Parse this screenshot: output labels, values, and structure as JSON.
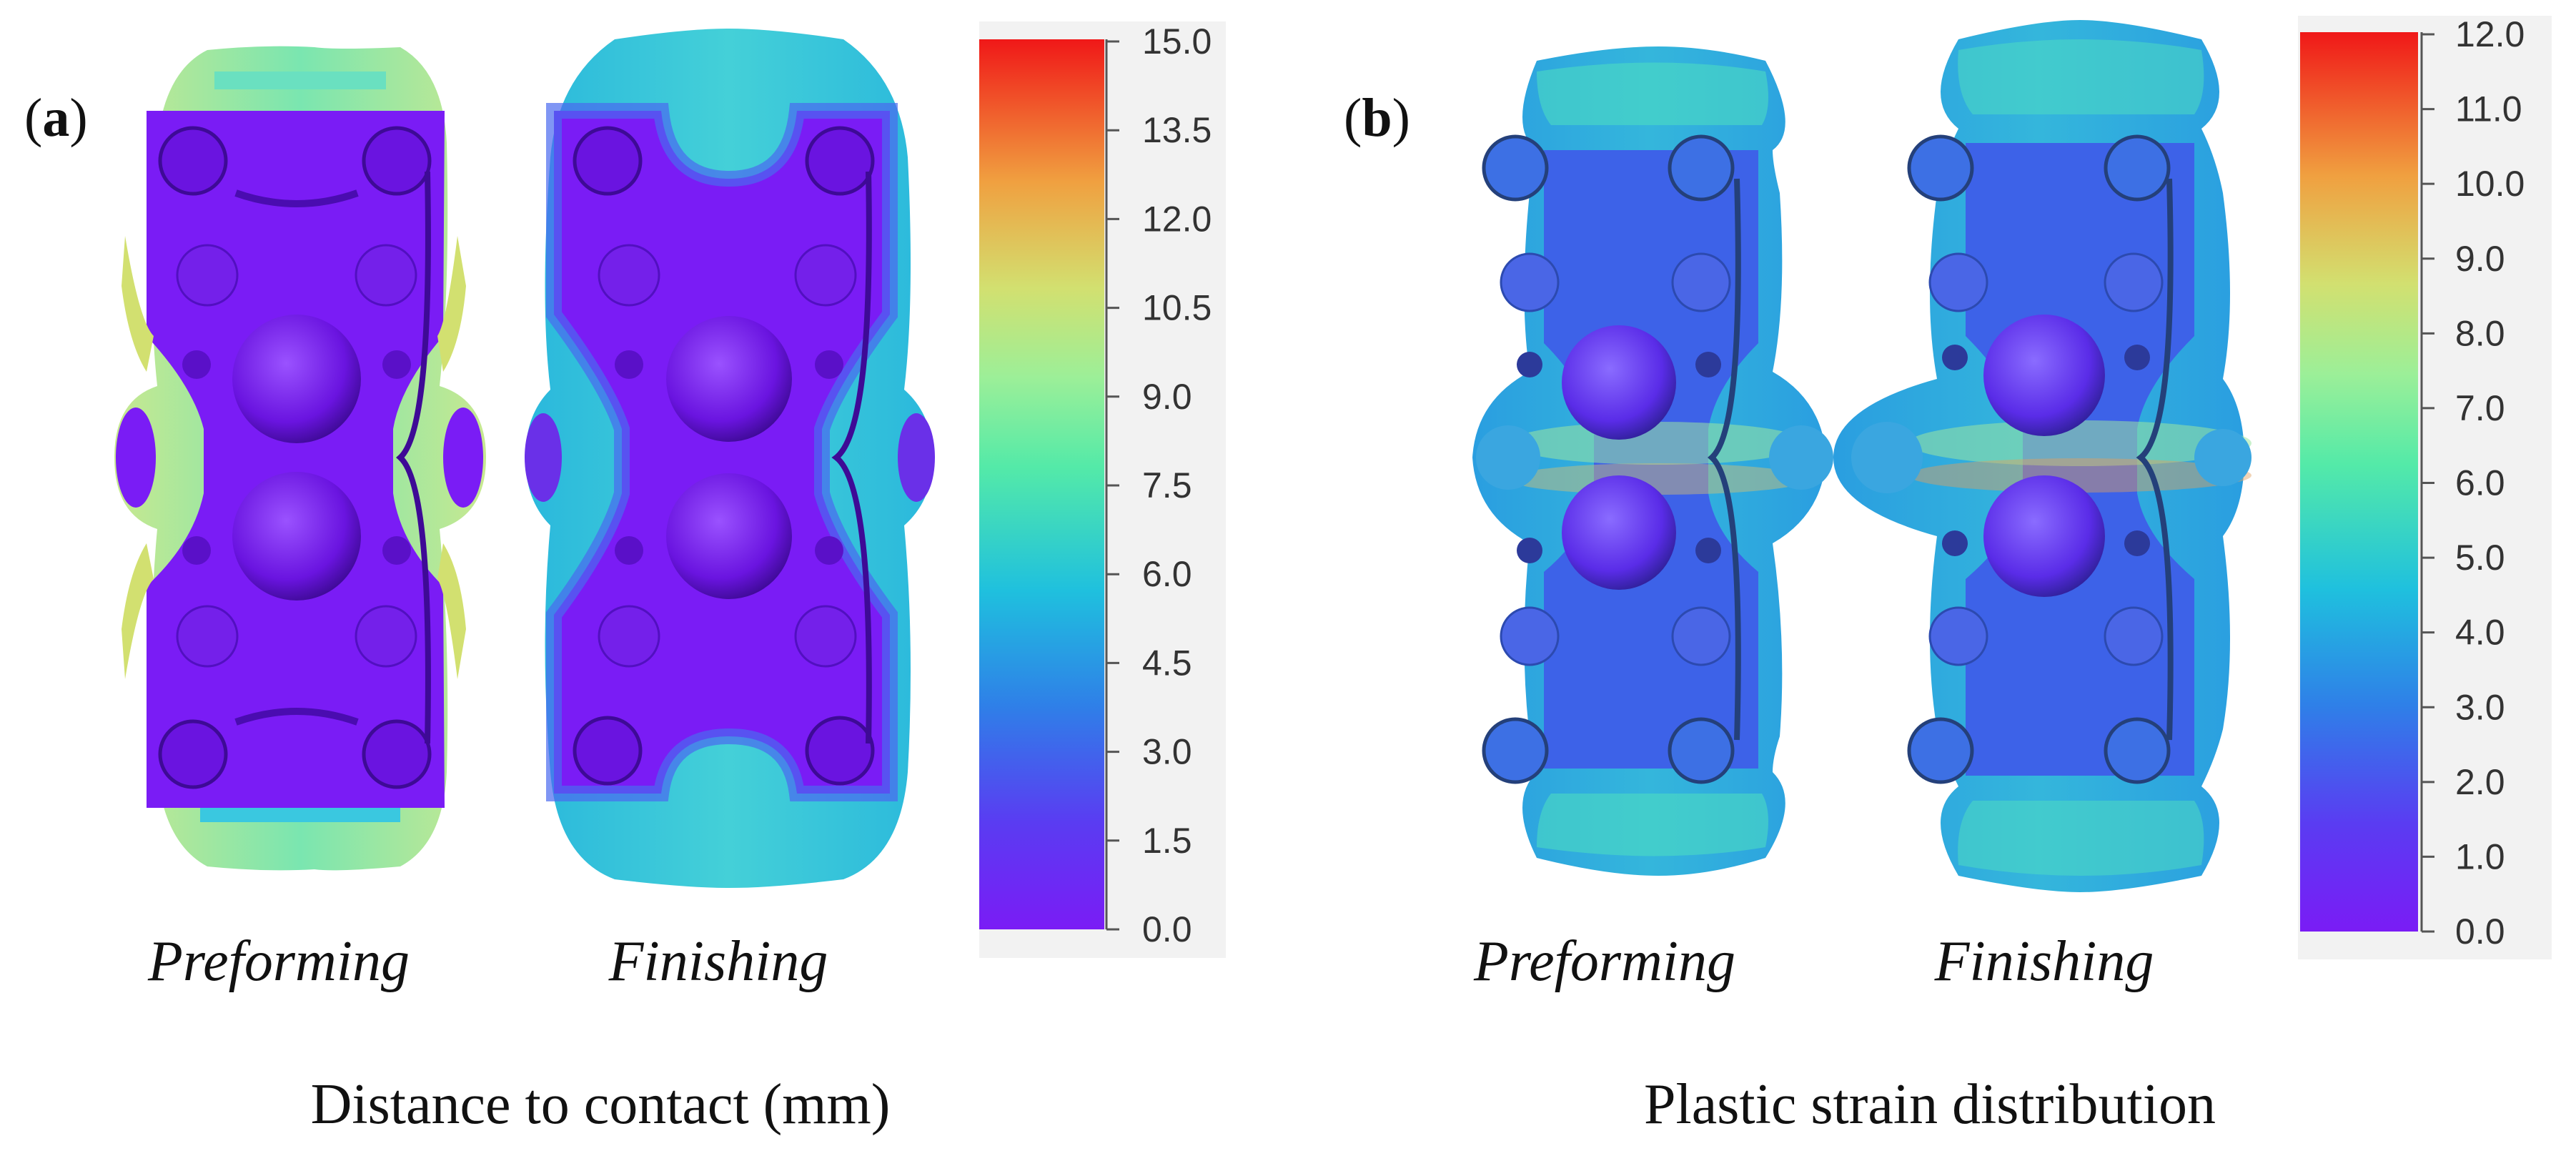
{
  "figure": {
    "panels": [
      {
        "id": "a",
        "label": "a",
        "caption": "Distance to contact (mm)",
        "part_captions": [
          "Preforming",
          "Finishing"
        ],
        "colorbar": {
          "min": 0.0,
          "max": 15.0,
          "ticks": [
            "15.0",
            "13.5",
            "12.0",
            "10.5",
            "9.0",
            "7.5",
            "6.0",
            "4.5",
            "3.0",
            "1.5",
            "0.0"
          ]
        }
      },
      {
        "id": "b",
        "label": "b",
        "caption": "Plastic strain distribution",
        "part_captions": [
          "Preforming",
          "Finishing"
        ],
        "colorbar": {
          "min": 0.0,
          "max": 12.0,
          "ticks": [
            "12.0",
            "11.0",
            "10.0",
            "9.0",
            "8.0",
            "7.0",
            "6.0",
            "5.0",
            "4.0",
            "3.0",
            "2.0",
            "1.0",
            "0.0"
          ]
        }
      }
    ],
    "colors": {
      "violet": "#7a1cf5",
      "blue": "#3d5ff0",
      "cyan": "#22c8dc",
      "green": "#6ff0a8",
      "yellow": "#d8e060",
      "orange": "#f0903a",
      "red": "#f01818"
    }
  }
}
